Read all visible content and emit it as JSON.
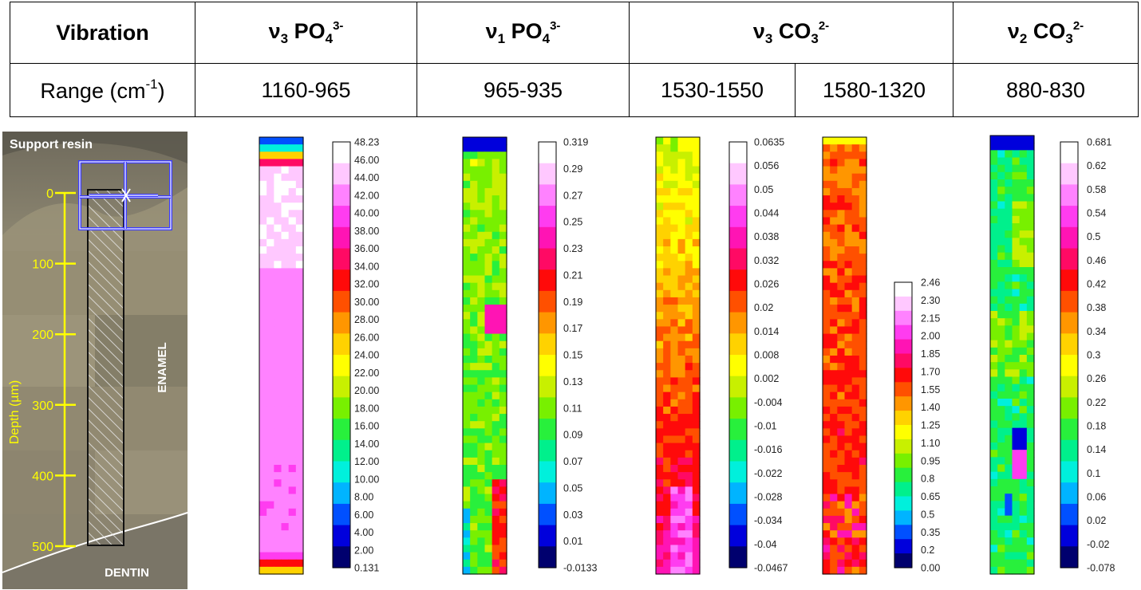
{
  "table": {
    "row1": {
      "label": "Vibration",
      "groups": [
        {
          "nu": "ν",
          "sub": "3",
          "ion": "PO",
          "ion_sub": "4",
          "charge": "3-"
        },
        {
          "nu": "ν",
          "sub": "1",
          "ion": "PO",
          "ion_sub": "4",
          "charge": "3-"
        },
        {
          "nu": "ν",
          "sub": "3",
          "ion": "CO",
          "ion_sub": "3",
          "charge": "2-"
        },
        {
          "nu": "ν",
          "sub": "2",
          "ion": "CO",
          "ion_sub": "3",
          "charge": "2-"
        }
      ]
    },
    "row2": {
      "label_pre": "Range (cm",
      "label_sup": "-1",
      "label_post": ")",
      "ranges": [
        "1160-965",
        "965-935",
        "1530-1550",
        "1580-1320",
        "880-830"
      ]
    }
  },
  "image_panel": {
    "top_label": "Support resin",
    "enamel_label": "ENAMEL",
    "dentin_label": "DENTIN",
    "axis_title": "Depth (µm)",
    "ticks": [
      "0",
      "100",
      "200",
      "300",
      "400",
      "500"
    ]
  },
  "maps": [
    {
      "ticks": [
        "48.23",
        "46.00",
        "44.00",
        "42.00",
        "40.00",
        "38.00",
        "36.00",
        "34.00",
        "32.00",
        "30.00",
        "28.00",
        "26.00",
        "24.00",
        "22.00",
        "20.00",
        "18.00",
        "16.00",
        "14.00",
        "12.00",
        "10.00",
        "8.00",
        "6.00",
        "4.00",
        "2.00",
        "0.131"
      ]
    },
    {
      "ticks": [
        "0.319",
        "0.29",
        "0.27",
        "0.25",
        "0.23",
        "0.21",
        "0.19",
        "0.17",
        "0.15",
        "0.13",
        "0.11",
        "0.09",
        "0.07",
        "0.05",
        "0.03",
        "0.01",
        "-0.0133"
      ]
    },
    {
      "ticks": [
        "0.0635",
        "0.056",
        "0.05",
        "0.044",
        "0.038",
        "0.032",
        "0.026",
        "0.02",
        "0.014",
        "0.008",
        "0.002",
        "-0.004",
        "-0.01",
        "-0.016",
        "-0.022",
        "-0.028",
        "-0.034",
        "-0.04",
        "-0.0467"
      ]
    },
    {
      "ticks": [
        "2.46",
        "2.30",
        "2.15",
        "2.00",
        "1.85",
        "1.70",
        "1.55",
        "1.40",
        "1.25",
        "1.10",
        "0.95",
        "0.8",
        "0.65",
        "0.5",
        "0.35",
        "0.2",
        "0.00"
      ]
    },
    {
      "ticks": [
        "0.681",
        "0.62",
        "0.58",
        "0.54",
        "0.5",
        "0.46",
        "0.42",
        "0.38",
        "0.34",
        "0.3",
        "0.26",
        "0.22",
        "0.18",
        "0.14",
        "0.1",
        "0.06",
        "0.02",
        "-0.02",
        "-0.078"
      ]
    }
  ],
  "colors": {
    "depth_axis": "#ffff00",
    "roi_box": "#3b3bff",
    "palette": [
      "#00006e",
      "#0000dc",
      "#0050ff",
      "#00b4ff",
      "#00f0dc",
      "#00f08c",
      "#28f03c",
      "#78f000",
      "#c8f000",
      "#ffff00",
      "#ffd200",
      "#ff9600",
      "#ff5000",
      "#ff0a0a",
      "#ff0a64",
      "#ff14b4",
      "#ff3cf0",
      "#ff82ff",
      "#ffc8ff",
      "#ffffff"
    ]
  }
}
